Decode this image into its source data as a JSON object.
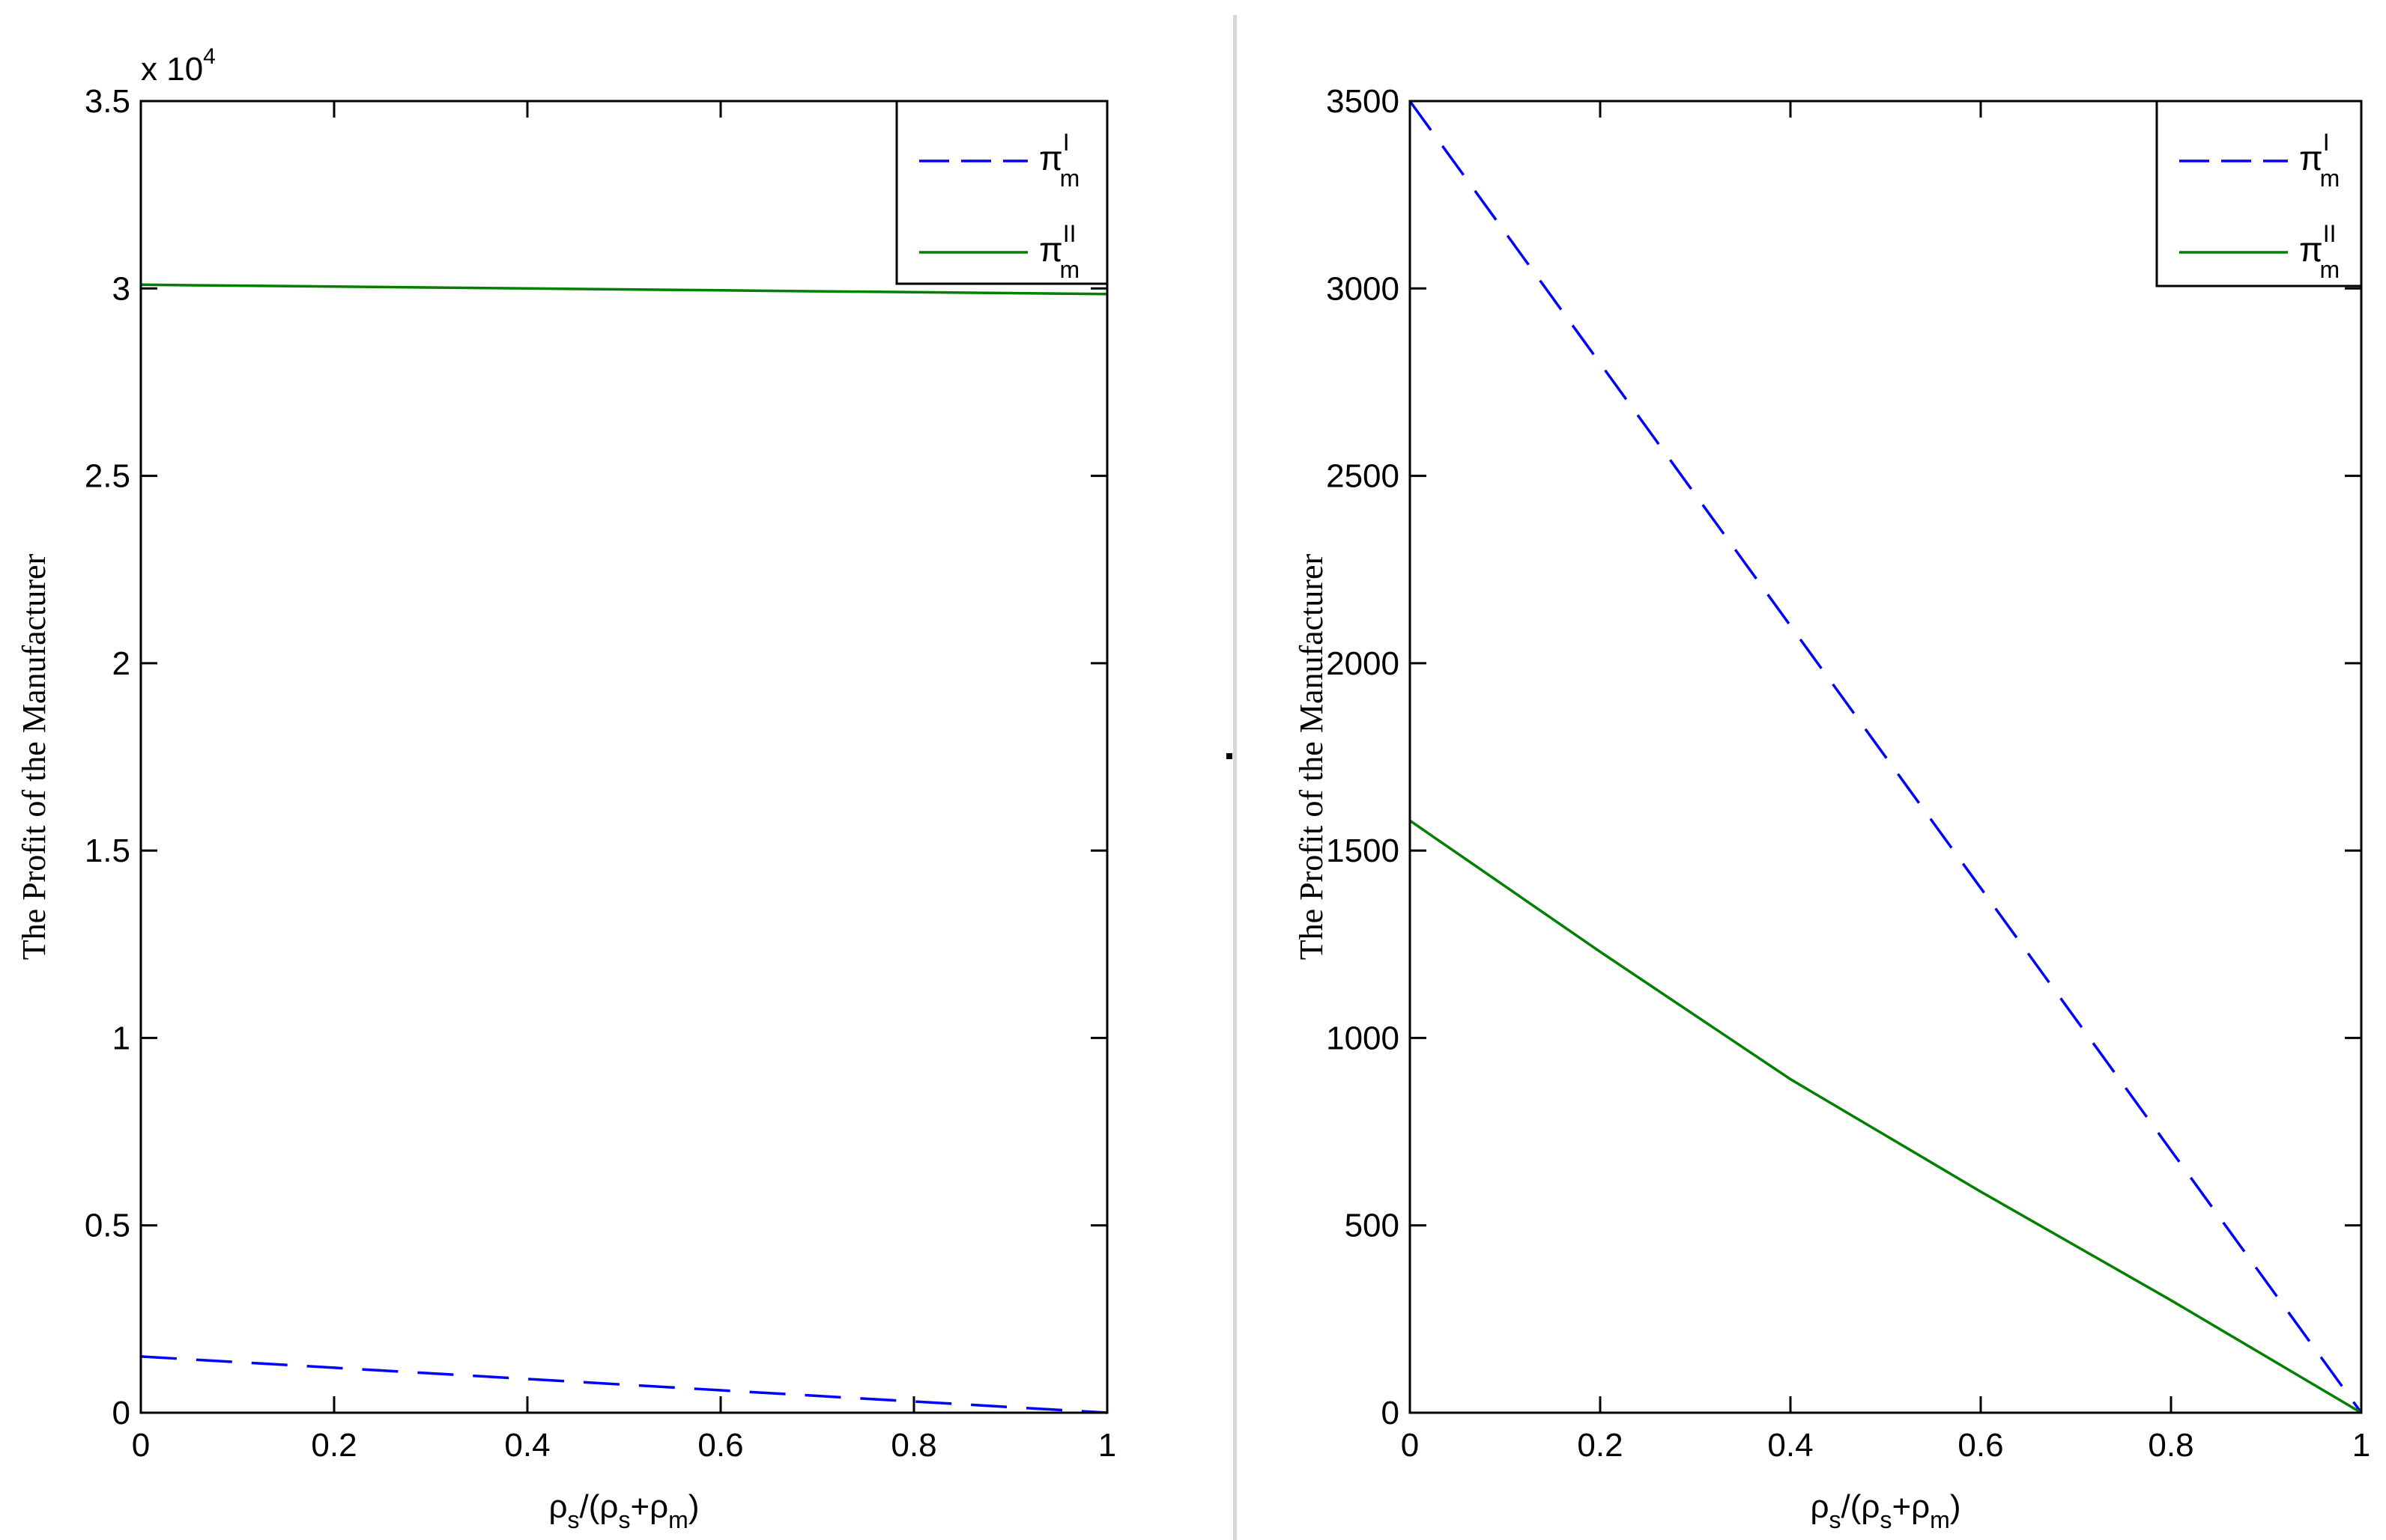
{
  "charts": [
    {
      "id": "left",
      "type": "line",
      "ylabel": "The Profit of the Manufacturer",
      "xlabel_parts": [
        "ρ",
        "s",
        "/(ρ",
        "s",
        "+ρ",
        "m",
        ")"
      ],
      "exponent_text": "x 10",
      "exponent_power": "4",
      "xlim": [
        0,
        1
      ],
      "ylim": [
        0,
        35000
      ],
      "x_ticks": [
        0,
        0.2,
        0.4,
        0.6,
        0.8,
        1
      ],
      "x_tick_labels": [
        "0",
        "0.2",
        "0.4",
        "0.6",
        "0.8",
        "1"
      ],
      "y_ticks": [
        0,
        5000,
        10000,
        15000,
        20000,
        25000,
        30000,
        35000
      ],
      "y_tick_labels": [
        "0",
        "0.5",
        "1",
        "1.5",
        "2",
        "2.5",
        "3",
        "3.5"
      ],
      "legend": "top-right",
      "series": [
        {
          "name": "π_m^I",
          "symbol": "π",
          "sub": "m",
          "sup": "I",
          "color": "#0000ff",
          "style": "dashed",
          "x": [
            0,
            0.2,
            0.4,
            0.6,
            0.8,
            1
          ],
          "y": [
            1500,
            1200,
            900,
            600,
            300,
            0
          ]
        },
        {
          "name": "π_m^II",
          "symbol": "π",
          "sub": "m",
          "sup": "II",
          "color": "#008000",
          "style": "solid",
          "x": [
            0,
            0.2,
            0.4,
            0.6,
            0.8,
            1
          ],
          "y": [
            30100,
            30050,
            30000,
            29950,
            29900,
            29850
          ]
        }
      ]
    },
    {
      "id": "right",
      "type": "line",
      "ylabel": "The Profit of the Manufacturer",
      "xlabel_parts": [
        "ρ",
        "s",
        "/(ρ",
        "s",
        "+ρ",
        "m",
        ")"
      ],
      "exponent_text": "",
      "exponent_power": "",
      "xlim": [
        0,
        1
      ],
      "ylim": [
        0,
        3500
      ],
      "x_ticks": [
        0,
        0.2,
        0.4,
        0.6,
        0.8,
        1
      ],
      "x_tick_labels": [
        "0",
        "0.2",
        "0.4",
        "0.6",
        "0.8",
        "1"
      ],
      "y_ticks": [
        0,
        500,
        1000,
        1500,
        2000,
        2500,
        3000,
        3500
      ],
      "y_tick_labels": [
        "0",
        "500",
        "1000",
        "1500",
        "2000",
        "2500",
        "3000",
        "3500"
      ],
      "legend": "top-right",
      "series": [
        {
          "name": "π_m^I",
          "symbol": "π",
          "sub": "m",
          "sup": "I",
          "color": "#0000ff",
          "style": "dashed",
          "x": [
            0,
            0.2,
            0.4,
            0.6,
            0.8,
            1
          ],
          "y": [
            3500,
            2800,
            2100,
            1400,
            700,
            0
          ]
        },
        {
          "name": "π_m^II",
          "symbol": "π",
          "sub": "m",
          "sup": "II",
          "color": "#008000",
          "style": "solid",
          "x": [
            0,
            0.2,
            0.4,
            0.6,
            0.8,
            1
          ],
          "y": [
            1580,
            1230,
            890,
            590,
            300,
            0
          ]
        }
      ]
    }
  ]
}
